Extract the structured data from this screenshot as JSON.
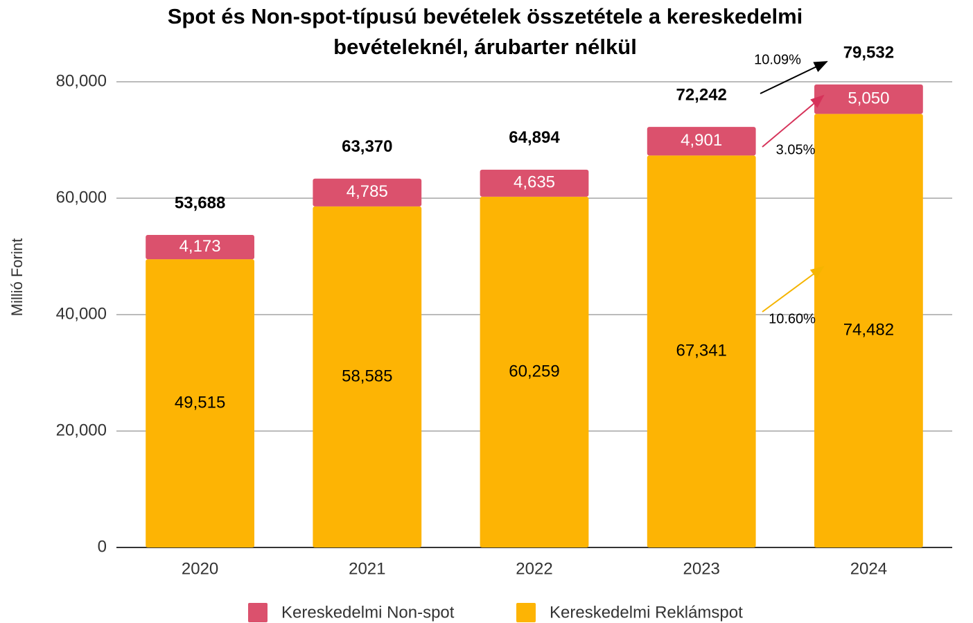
{
  "chart_data": {
    "type": "stacked_bar",
    "title": [
      "Spot és Non-spot-típusú bevételek összetétele a kereskedelmi",
      "bevételeknél, árubarter nélkül"
    ],
    "y_label": "Millió Forint",
    "categories": [
      "2020",
      "2021",
      "2022",
      "2023",
      "2024"
    ],
    "series": [
      {
        "name": "Kereskedelmi Reklámspot",
        "color": "#fdb404",
        "label_color": "#000000",
        "values": [
          49515,
          58585,
          60259,
          67341,
          74482
        ],
        "value_labels": [
          "49,515",
          "58,585",
          "60,259",
          "67,341",
          "74,482"
        ]
      },
      {
        "name": "Kereskedelmi Non-spot",
        "color": "#db516d",
        "label_color": "#ffffff",
        "values": [
          4173,
          4785,
          4635,
          4901,
          5050
        ],
        "value_labels": [
          "4,173",
          "4,785",
          "4,635",
          "4,901",
          "5,050"
        ]
      }
    ],
    "totals": {
      "values": [
        53688,
        63370,
        64894,
        72242,
        79532
      ],
      "value_labels": [
        "53,688",
        "63,370",
        "64,894",
        "72,242",
        "79,532"
      ]
    },
    "annotations": [
      "10.09%",
      "3.05%",
      "10.60%"
    ],
    "ylim": [
      0,
      80000
    ],
    "yticks": [
      0,
      {
        "value": 20000,
        "label": "20,000"
      },
      {
        "value": 40000,
        "label": "40,000"
      },
      {
        "value": 60000,
        "label": "60,000"
      },
      {
        "value": 80000,
        "label": "80,000"
      }
    ],
    "grid": true,
    "legend": "bottom"
  }
}
